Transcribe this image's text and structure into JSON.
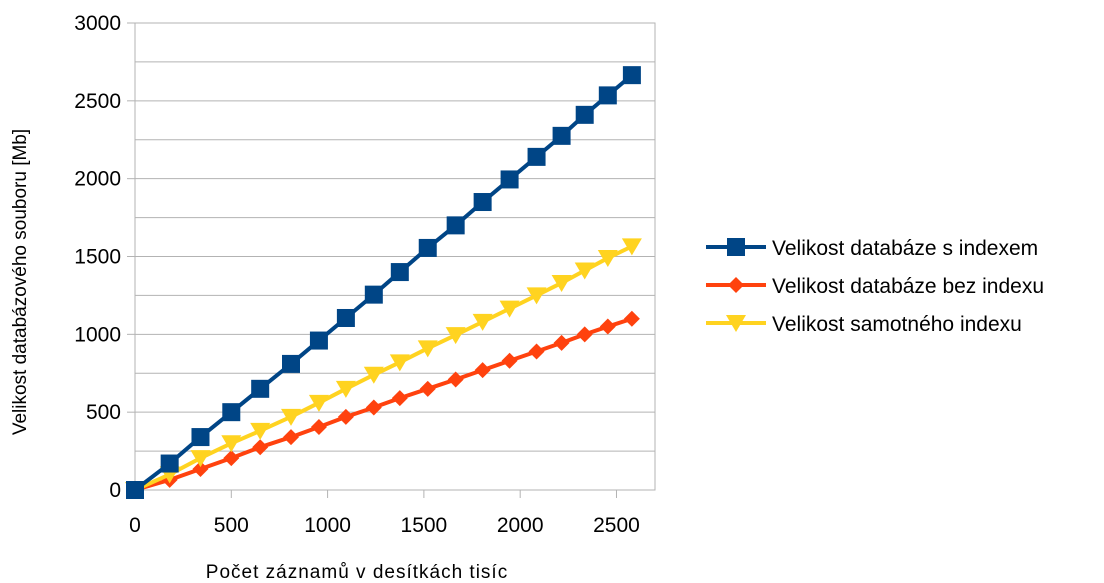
{
  "chart_data": {
    "type": "line",
    "title": "",
    "xlabel": "Počet záznamů v desítkách tisíc",
    "ylabel": "Velikost databázového souboru [Mb]",
    "xlim": [
      0,
      2700
    ],
    "ylim": [
      0,
      3000
    ],
    "xticks": [
      0,
      500,
      1000,
      1500,
      2000,
      2500
    ],
    "yticks": [
      0,
      500,
      1000,
      1500,
      2000,
      2500,
      3000
    ],
    "grid": "horizontal",
    "legend_position": "right",
    "x": [
      0,
      180,
      340,
      500,
      650,
      810,
      955,
      1095,
      1240,
      1375,
      1520,
      1665,
      1805,
      1945,
      2085,
      2215,
      2335,
      2455,
      2580
    ],
    "series": [
      {
        "name": "Velikost databáze s indexem",
        "color": "#004586",
        "marker": "square",
        "values": [
          0,
          170,
          340,
          500,
          650,
          810,
          960,
          1105,
          1255,
          1400,
          1555,
          1700,
          1850,
          1995,
          2140,
          2275,
          2410,
          2535,
          2665
        ]
      },
      {
        "name": "Velikost databáze bez indexu",
        "color": "#ff420e",
        "marker": "diamond",
        "values": [
          0,
          65,
          135,
          205,
          275,
          340,
          405,
          470,
          530,
          590,
          650,
          710,
          770,
          830,
          890,
          945,
          1000,
          1050,
          1100
        ]
      },
      {
        "name": "Velikost samotného indexu",
        "color": "#ffd320",
        "marker": "triangle-down",
        "values": [
          0,
          100,
          205,
          300,
          380,
          470,
          560,
          650,
          740,
          820,
          910,
          995,
          1080,
          1165,
          1250,
          1330,
          1410,
          1490,
          1565
        ]
      }
    ]
  }
}
